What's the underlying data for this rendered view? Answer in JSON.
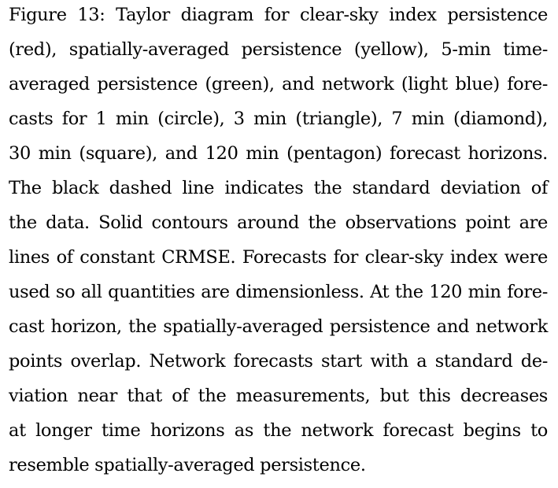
{
  "caption": {
    "lines": [
      "Figure 13: Taylor diagram for clear-sky index persistence",
      "(red), spatially-averaged persistence (yellow), 5-min time-",
      "averaged persistence (green), and network (light blue) fore-",
      "casts for 1 min (circle), 3 min (triangle), 7 min (diamond),",
      "30 min (square), and 120 min (pentagon) forecast horizons.",
      "The black dashed line indicates the standard deviation of",
      "the data. Solid contours around the observations point are",
      "lines of constant CRMSE. Forecasts for clear-sky index were",
      "used so all quantities are dimensionless. At the 120 min fore-",
      "cast horizon, the spatially-averaged persistence and network",
      "points overlap. Network forecasts start with a standard de-",
      "viation near that of the measurements, but this decreases",
      "at longer time horizons as the network forecast begins to",
      "resemble spatially-averaged persistence."
    ]
  }
}
